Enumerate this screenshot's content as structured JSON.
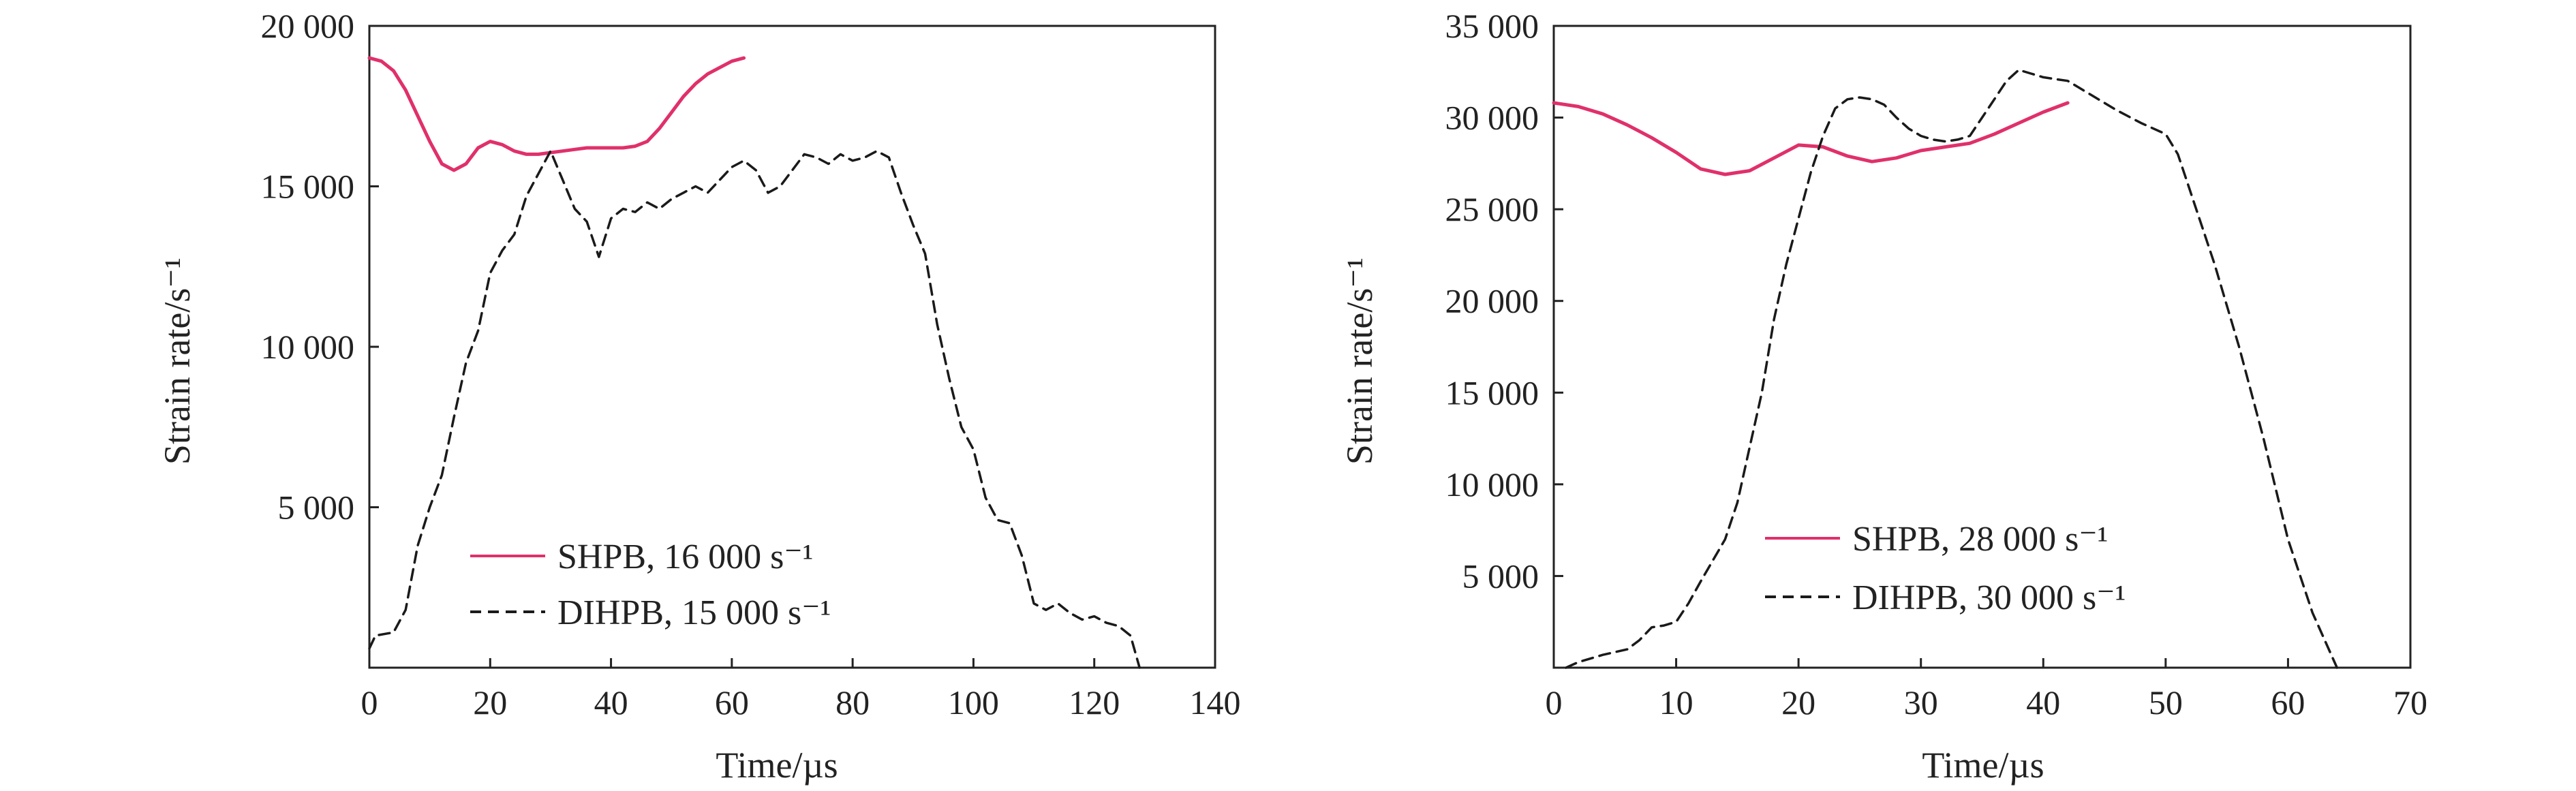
{
  "colors": {
    "shpb": "#e0306a",
    "dihpb": "#1a1a1a",
    "axis": "#222222"
  },
  "chart_data": [
    {
      "type": "line",
      "xlabel": "Time/µs",
      "ylabel": "Strain rate/s⁻¹",
      "xlim": [
        0,
        140
      ],
      "ylim": [
        0,
        20000
      ],
      "x_ticks": [
        0,
        20,
        40,
        60,
        80,
        100,
        120,
        140
      ],
      "x_tick_labels": [
        "0",
        "20",
        "40",
        "60",
        "80",
        "100",
        "120",
        "140"
      ],
      "y_ticks": [
        5000,
        10000,
        15000,
        20000
      ],
      "y_tick_labels": [
        "5 000",
        "10 000",
        "15 000",
        "20 000"
      ],
      "legend_position": "lower-center",
      "series": [
        {
          "name": "SHPB, 16 000 s⁻¹",
          "style": "solid",
          "x": [
            0,
            2,
            4,
            6,
            8,
            10,
            12,
            14,
            16,
            18,
            20,
            22,
            24,
            26,
            28,
            30,
            32,
            34,
            36,
            38,
            40,
            42,
            44,
            46,
            48,
            50,
            52,
            54,
            56,
            58,
            60,
            62
          ],
          "y": [
            19000,
            18900,
            18600,
            18000,
            17200,
            16400,
            15700,
            15500,
            15700,
            16200,
            16400,
            16300,
            16100,
            16000,
            16000,
            16050,
            16100,
            16150,
            16200,
            16200,
            16200,
            16200,
            16250,
            16400,
            16800,
            17300,
            17800,
            18200,
            18500,
            18700,
            18900,
            19000
          ]
        },
        {
          "name": "DIHPB, 15 000 s⁻¹",
          "style": "dashed",
          "x": [
            0,
            1,
            4,
            6,
            8,
            10,
            12,
            14,
            16,
            18,
            20,
            22,
            24,
            26,
            28,
            30,
            32,
            34,
            36,
            38,
            40,
            42,
            44,
            46,
            48,
            50,
            52,
            54,
            56,
            58,
            60,
            62,
            64,
            66,
            68,
            70,
            72,
            74,
            76,
            78,
            80,
            82,
            84,
            86,
            88,
            90,
            92,
            94,
            96,
            98,
            100,
            102,
            104,
            106,
            108,
            110,
            112,
            114,
            116,
            118,
            120,
            122,
            124,
            126,
            127.5
          ],
          "y": [
            600,
            1000,
            1100,
            1800,
            3800,
            5000,
            6000,
            7800,
            9500,
            10500,
            12300,
            13000,
            13500,
            14700,
            15400,
            16100,
            15200,
            14300,
            13900,
            12800,
            14000,
            14300,
            14200,
            14500,
            14300,
            14600,
            14800,
            15000,
            14800,
            15200,
            15600,
            15800,
            15500,
            14800,
            15000,
            15500,
            16000,
            15900,
            15700,
            16000,
            15800,
            15900,
            16100,
            15900,
            14800,
            13800,
            12900,
            10700,
            9000,
            7500,
            6800,
            5300,
            4600,
            4500,
            3500,
            2000,
            1800,
            2000,
            1700,
            1500,
            1600,
            1400,
            1300,
            1000,
            0
          ]
        }
      ]
    },
    {
      "type": "line",
      "xlabel": "Time/µs",
      "ylabel": "Strain rate/s⁻¹",
      "xlim": [
        0,
        70
      ],
      "ylim": [
        0,
        35000
      ],
      "x_ticks": [
        0,
        10,
        20,
        30,
        40,
        50,
        60,
        70
      ],
      "x_tick_labels": [
        "0",
        "10",
        "20",
        "30",
        "40",
        "50",
        "60",
        "70"
      ],
      "y_ticks": [
        5000,
        10000,
        15000,
        20000,
        25000,
        30000,
        35000
      ],
      "y_tick_labels": [
        "5 000",
        "10 000",
        "15 000",
        "20 000",
        "25 000",
        "30 000",
        "35 000"
      ],
      "legend_position": "lower-center",
      "series": [
        {
          "name": "SHPB, 28 000 s⁻¹",
          "style": "solid",
          "x": [
            0,
            2,
            4,
            6,
            8,
            10,
            12,
            14,
            16,
            18,
            20,
            22,
            24,
            26,
            28,
            30,
            32,
            34,
            36,
            38,
            40,
            42
          ],
          "y": [
            30800,
            30600,
            30200,
            29600,
            28900,
            28100,
            27200,
            26900,
            27100,
            27800,
            28500,
            28400,
            27900,
            27600,
            27800,
            28200,
            28400,
            28600,
            29100,
            29700,
            30300,
            30800
          ]
        },
        {
          "name": "DIHPB, 30 000 s⁻¹",
          "style": "dashed",
          "x": [
            1,
            2,
            4,
            6,
            7,
            8,
            9,
            10,
            11,
            12,
            14,
            15,
            16,
            17,
            18,
            19,
            20,
            21,
            22,
            23,
            24,
            25,
            26,
            27,
            28,
            29,
            30,
            31,
            32,
            33,
            34,
            35,
            36,
            37,
            38,
            39,
            40,
            41,
            42,
            44,
            46,
            48,
            50,
            51,
            52,
            54,
            56,
            58,
            60,
            62,
            64
          ],
          "y": [
            0,
            300,
            700,
            1000,
            1500,
            2200,
            2300,
            2500,
            3500,
            4700,
            7000,
            9000,
            12000,
            15000,
            19000,
            22000,
            24500,
            27000,
            29000,
            30500,
            31000,
            31100,
            31000,
            30700,
            30000,
            29400,
            29000,
            28800,
            28700,
            28800,
            29000,
            30000,
            31000,
            32000,
            32600,
            32400,
            32200,
            32100,
            32000,
            31200,
            30400,
            29700,
            29100,
            28000,
            26000,
            22000,
            17500,
            12500,
            7000,
            3000,
            0
          ]
        }
      ]
    }
  ]
}
